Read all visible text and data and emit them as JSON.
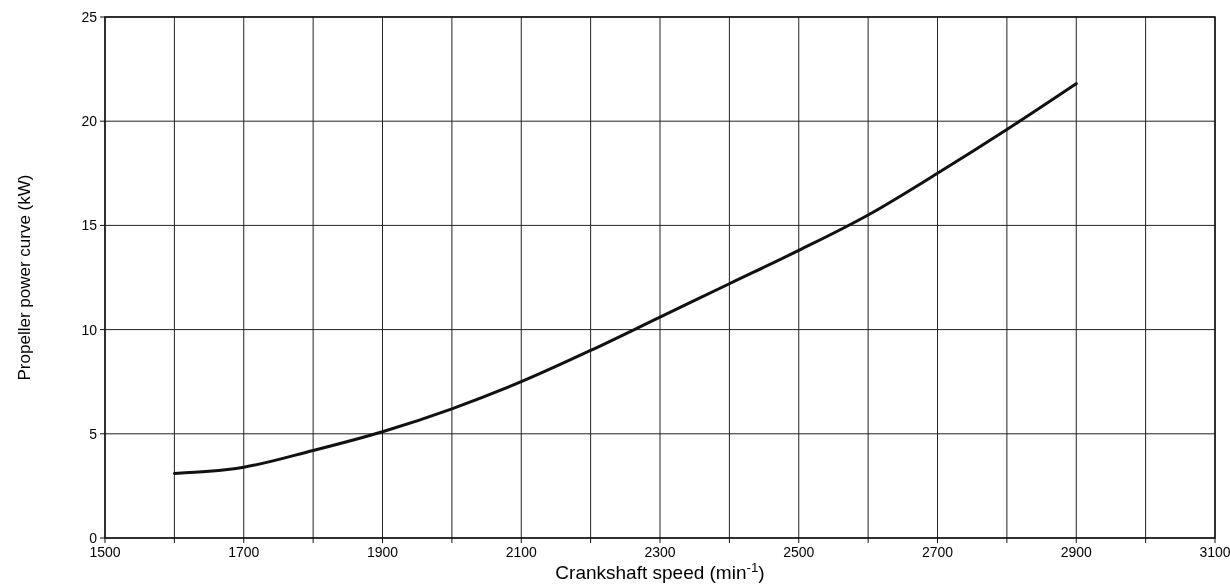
{
  "chart_data": {
    "type": "line",
    "xlabel": "Crankshaft speed (min$^{-1}$)",
    "ylabel": "Propeller power curve (kW)",
    "x": [
      1600,
      1650,
      1700,
      1800,
      1900,
      2000,
      2100,
      2200,
      2300,
      2400,
      2500,
      2600,
      2700,
      2800,
      2900
    ],
    "values": [
      3.1,
      3.2,
      3.4,
      4.2,
      5.1,
      6.2,
      7.5,
      9.0,
      10.6,
      12.2,
      13.8,
      15.5,
      17.5,
      19.6,
      21.8
    ],
    "color": "#111111",
    "xlim": [
      1500,
      3100
    ],
    "ylim": [
      0,
      25
    ],
    "xticks": [
      1500,
      {
        "value": 1600,
        "label": null
      },
      1700,
      {
        "value": 1800,
        "label": null
      },
      1900,
      {
        "value": 2000,
        "label": null
      },
      2100,
      {
        "value": 2200,
        "label": null
      },
      2300,
      {
        "value": 2400,
        "label": null
      },
      2500,
      {
        "value": 2600,
        "label": null
      },
      2700,
      {
        "value": 2800,
        "label": null
      },
      2900,
      {
        "value": 3000,
        "label": null
      },
      3100
    ],
    "yticks": [
      0,
      5,
      10,
      15,
      20,
      25
    ],
    "grid": true,
    "marker": "none",
    "line_style": "solid"
  }
}
